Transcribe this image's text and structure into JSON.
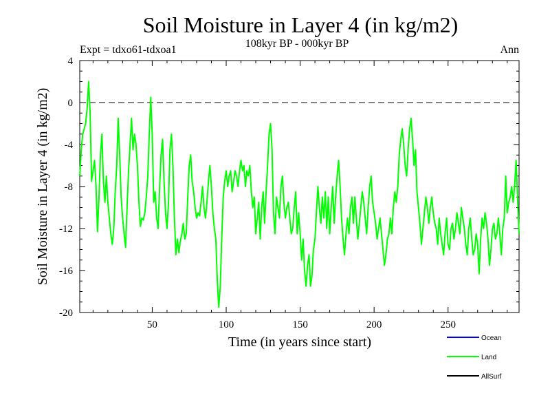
{
  "chart_data": {
    "type": "line",
    "title": "Soil Moisture in Layer 4 (in kg/m2)",
    "subtitle": "108kyr BP - 000kyr BP",
    "experiment_label": "Expt = tdxo61-tdxoa1",
    "season_label": "Ann",
    "xlabel": "Time (in years since start)",
    "ylabel": "Soil Moisture in Layer 4 (in kg/m2)",
    "xlim": [
      1,
      298
    ],
    "ylim": [
      -20,
      4
    ],
    "xticks": [
      50,
      100,
      150,
      200,
      250
    ],
    "yticks": [
      4,
      0,
      -4,
      -8,
      -12,
      -16,
      -20
    ],
    "reference_line": {
      "y": 0,
      "style": "dashed"
    },
    "legend": [
      {
        "name": "Ocean",
        "color": "#0000ff"
      },
      {
        "name": "Land",
        "color": "#00ff00"
      },
      {
        "name": "AllSurf",
        "color": "#000000"
      }
    ],
    "series": [
      {
        "name": "Land",
        "color": "#00ff00",
        "points": [
          [
            1,
            -7.0
          ],
          [
            2,
            -4.5
          ],
          [
            3,
            -3.0
          ],
          [
            4,
            -2.5
          ],
          [
            5,
            -2.0
          ],
          [
            6,
            -0.5
          ],
          [
            7,
            2.0
          ],
          [
            8,
            -1.0
          ],
          [
            9,
            -7.5
          ],
          [
            10,
            -6.5
          ],
          [
            11,
            -5.5
          ],
          [
            12,
            -8.0
          ],
          [
            13,
            -12.3
          ],
          [
            14,
            -9.0
          ],
          [
            15,
            -5.0
          ],
          [
            16,
            -3.0
          ],
          [
            17,
            -7.5
          ],
          [
            18,
            -9.5
          ],
          [
            19,
            -7.0
          ],
          [
            20,
            -9.5
          ],
          [
            21,
            -11.0
          ],
          [
            22,
            -12.5
          ],
          [
            23,
            -13.5
          ],
          [
            24,
            -12.0
          ],
          [
            25,
            -8.5
          ],
          [
            26,
            -6.0
          ],
          [
            27,
            -1.5
          ],
          [
            28,
            -5.0
          ],
          [
            29,
            -9.0
          ],
          [
            30,
            -11.0
          ],
          [
            31,
            -12.5
          ],
          [
            32,
            -13.8
          ],
          [
            33,
            -10.0
          ],
          [
            34,
            -6.5
          ],
          [
            35,
            -4.0
          ],
          [
            36,
            -1.5
          ],
          [
            37,
            -4.5
          ],
          [
            38,
            -3.0
          ],
          [
            39,
            -4.0
          ],
          [
            40,
            -6.0
          ],
          [
            41,
            -9.5
          ],
          [
            42,
            -11.8
          ],
          [
            43,
            -11.0
          ],
          [
            44,
            -11.2
          ],
          [
            45,
            -10.5
          ],
          [
            46,
            -9.0
          ],
          [
            47,
            -7.0
          ],
          [
            48,
            -3.0
          ],
          [
            49,
            0.5
          ],
          [
            50,
            -3.0
          ],
          [
            51,
            -9.5
          ],
          [
            52,
            -8.5
          ],
          [
            53,
            -11.0
          ],
          [
            54,
            -12.0
          ],
          [
            55,
            -8.0
          ],
          [
            56,
            -5.0
          ],
          [
            57,
            -3.5
          ],
          [
            58,
            -7.5
          ],
          [
            59,
            -10.5
          ],
          [
            60,
            -12.0
          ],
          [
            61,
            -9.5
          ],
          [
            62,
            -4.5
          ],
          [
            63,
            -3.0
          ],
          [
            64,
            -6.0
          ],
          [
            65,
            -11.0
          ],
          [
            66,
            -14.5
          ],
          [
            67,
            -13.0
          ],
          [
            68,
            -14.3
          ],
          [
            69,
            -13.2
          ],
          [
            70,
            -12.5
          ],
          [
            71,
            -11.5
          ],
          [
            72,
            -13.0
          ],
          [
            73,
            -12.5
          ],
          [
            74,
            -9.0
          ],
          [
            75,
            -6.0
          ],
          [
            76,
            -5.0
          ],
          [
            77,
            -7.5
          ],
          [
            78,
            -8.5
          ],
          [
            79,
            -10.0
          ],
          [
            80,
            -11.0
          ],
          [
            81,
            -10.5
          ],
          [
            82,
            -10.8
          ],
          [
            83,
            -9.5
          ],
          [
            84,
            -8.0
          ],
          [
            85,
            -10.0
          ],
          [
            86,
            -11.0
          ],
          [
            87,
            -9.5
          ],
          [
            88,
            -7.5
          ],
          [
            89,
            -6.0
          ],
          [
            90,
            -8.0
          ],
          [
            91,
            -10.5
          ],
          [
            92,
            -12.0
          ],
          [
            93,
            -13.0
          ],
          [
            94,
            -17.0
          ],
          [
            95,
            -19.5
          ],
          [
            96,
            -17.5
          ],
          [
            97,
            -13.0
          ],
          [
            98,
            -9.0
          ],
          [
            99,
            -7.5
          ],
          [
            100,
            -6.5
          ],
          [
            101,
            -8.0
          ],
          [
            102,
            -7.0
          ],
          [
            103,
            -6.5
          ],
          [
            104,
            -8.5
          ],
          [
            105,
            -7.5
          ],
          [
            106,
            -6.5
          ],
          [
            107,
            -7.0
          ],
          [
            108,
            -8.0
          ],
          [
            109,
            -6.5
          ],
          [
            110,
            -5.5
          ],
          [
            111,
            -6.5
          ],
          [
            112,
            -6.0
          ],
          [
            113,
            -8.0
          ],
          [
            114,
            -6.5
          ],
          [
            115,
            -7.0
          ],
          [
            116,
            -6.0
          ],
          [
            117,
            -8.5
          ],
          [
            118,
            -10.0
          ],
          [
            119,
            -9.0
          ],
          [
            120,
            -12.5
          ],
          [
            121,
            -11.0
          ],
          [
            122,
            -9.5
          ],
          [
            123,
            -13.0
          ],
          [
            124,
            -10.0
          ],
          [
            125,
            -8.5
          ],
          [
            126,
            -11.5
          ],
          [
            127,
            -8.5
          ],
          [
            128,
            -6.0
          ],
          [
            129,
            -3.0
          ],
          [
            130,
            -2.0
          ],
          [
            131,
            -4.5
          ],
          [
            132,
            -10.5
          ],
          [
            133,
            -12.5
          ],
          [
            134,
            -9.0
          ],
          [
            135,
            -10.0
          ],
          [
            136,
            -11.0
          ],
          [
            137,
            -8.0
          ],
          [
            138,
            -7.0
          ],
          [
            139,
            -9.5
          ],
          [
            140,
            -11.0
          ],
          [
            141,
            -10.0
          ],
          [
            142,
            -9.5
          ],
          [
            143,
            -11.0
          ],
          [
            144,
            -12.5
          ],
          [
            145,
            -12.0
          ],
          [
            146,
            -10.0
          ],
          [
            147,
            -8.5
          ],
          [
            148,
            -12.5
          ],
          [
            149,
            -10.5
          ],
          [
            150,
            -12.5
          ],
          [
            151,
            -15.0
          ],
          [
            152,
            -13.0
          ],
          [
            153,
            -16.0
          ],
          [
            154,
            -17.5
          ],
          [
            155,
            -15.5
          ],
          [
            156,
            -14.5
          ],
          [
            157,
            -17.5
          ],
          [
            158,
            -16.5
          ],
          [
            159,
            -14.0
          ],
          [
            160,
            -13.0
          ],
          [
            161,
            -10.5
          ],
          [
            162,
            -8.0
          ],
          [
            163,
            -10.0
          ],
          [
            164,
            -11.5
          ],
          [
            165,
            -9.0
          ],
          [
            166,
            -11.0
          ],
          [
            167,
            -8.5
          ],
          [
            168,
            -12.0
          ],
          [
            169,
            -9.0
          ],
          [
            170,
            -12.5
          ],
          [
            171,
            -10.0
          ],
          [
            172,
            -8.0
          ],
          [
            173,
            -11.5
          ],
          [
            174,
            -9.0
          ],
          [
            175,
            -7.0
          ],
          [
            176,
            -5.5
          ],
          [
            177,
            -8.0
          ],
          [
            178,
            -11.0
          ],
          [
            179,
            -13.0
          ],
          [
            180,
            -14.5
          ],
          [
            181,
            -12.5
          ],
          [
            182,
            -11.0
          ],
          [
            183,
            -12.5
          ],
          [
            184,
            -10.0
          ],
          [
            185,
            -9.0
          ],
          [
            186,
            -11.5
          ],
          [
            187,
            -9.0
          ],
          [
            188,
            -11.0
          ],
          [
            189,
            -13.0
          ],
          [
            190,
            -11.5
          ],
          [
            191,
            -10.0
          ],
          [
            192,
            -8.5
          ],
          [
            193,
            -9.5
          ],
          [
            194,
            -11.0
          ],
          [
            195,
            -12.5
          ],
          [
            196,
            -10.0
          ],
          [
            197,
            -8.0
          ],
          [
            198,
            -7.0
          ],
          [
            199,
            -9.5
          ],
          [
            200,
            -10.5
          ],
          [
            201,
            -11.5
          ],
          [
            202,
            -13.0
          ],
          [
            203,
            -12.0
          ],
          [
            204,
            -11.0
          ],
          [
            205,
            -12.5
          ],
          [
            206,
            -14.0
          ],
          [
            207,
            -15.5
          ],
          [
            208,
            -14.5
          ],
          [
            209,
            -13.0
          ],
          [
            210,
            -12.5
          ],
          [
            211,
            -11.0
          ],
          [
            212,
            -12.5
          ],
          [
            213,
            -10.0
          ],
          [
            214,
            -8.5
          ],
          [
            215,
            -9.5
          ],
          [
            216,
            -8.0
          ],
          [
            217,
            -5.0
          ],
          [
            218,
            -3.5
          ],
          [
            219,
            -2.5
          ],
          [
            220,
            -4.0
          ],
          [
            221,
            -6.0
          ],
          [
            222,
            -7.0
          ],
          [
            223,
            -4.5
          ],
          [
            224,
            -2.5
          ],
          [
            225,
            -1.5
          ],
          [
            226,
            -3.5
          ],
          [
            227,
            -6.0
          ],
          [
            228,
            -4.5
          ],
          [
            229,
            -8.5
          ],
          [
            230,
            -10.0
          ],
          [
            231,
            -11.5
          ],
          [
            232,
            -13.5
          ],
          [
            233,
            -12.0
          ],
          [
            234,
            -10.5
          ],
          [
            235,
            -9.0
          ],
          [
            236,
            -10.0
          ],
          [
            237,
            -11.5
          ],
          [
            238,
            -10.0
          ],
          [
            239,
            -9.0
          ],
          [
            240,
            -10.5
          ],
          [
            241,
            -11.5
          ],
          [
            242,
            -12.0
          ],
          [
            243,
            -13.5
          ],
          [
            244,
            -11.0
          ],
          [
            245,
            -12.5
          ],
          [
            246,
            -13.5
          ],
          [
            247,
            -14.5
          ],
          [
            248,
            -12.5
          ],
          [
            249,
            -11.0
          ],
          [
            250,
            -13.5
          ],
          [
            251,
            -14.0
          ],
          [
            252,
            -12.0
          ],
          [
            253,
            -11.5
          ],
          [
            254,
            -13.0
          ],
          [
            255,
            -12.0
          ],
          [
            256,
            -10.5
          ],
          [
            257,
            -11.5
          ],
          [
            258,
            -12.5
          ],
          [
            259,
            -10.0
          ],
          [
            260,
            -11.0
          ],
          [
            261,
            -12.0
          ],
          [
            262,
            -13.5
          ],
          [
            263,
            -14.5
          ],
          [
            264,
            -12.0
          ],
          [
            265,
            -11.0
          ],
          [
            266,
            -13.0
          ],
          [
            267,
            -14.5
          ],
          [
            268,
            -14.0
          ],
          [
            269,
            -12.5
          ],
          [
            270,
            -13.5
          ],
          [
            271,
            -16.3
          ],
          [
            272,
            -13.0
          ],
          [
            273,
            -11.0
          ],
          [
            274,
            -12.0
          ],
          [
            275,
            -10.5
          ],
          [
            276,
            -11.5
          ],
          [
            277,
            -13.0
          ],
          [
            278,
            -15.5
          ],
          [
            279,
            -14.0
          ],
          [
            280,
            -12.0
          ],
          [
            281,
            -11.5
          ],
          [
            282,
            -13.0
          ],
          [
            283,
            -12.5
          ],
          [
            284,
            -11.0
          ],
          [
            285,
            -12.5
          ],
          [
            286,
            -14.5
          ],
          [
            287,
            -12.0
          ],
          [
            288,
            -11.0
          ],
          [
            289,
            -7.0
          ],
          [
            290,
            -10.5
          ],
          [
            291,
            -9.5
          ],
          [
            292,
            -9.0
          ],
          [
            293,
            -8.0
          ],
          [
            294,
            -9.5
          ],
          [
            295,
            -8.0
          ],
          [
            296,
            -5.5
          ],
          [
            297,
            -9.0
          ],
          [
            298,
            -12.5
          ]
        ]
      }
    ]
  }
}
